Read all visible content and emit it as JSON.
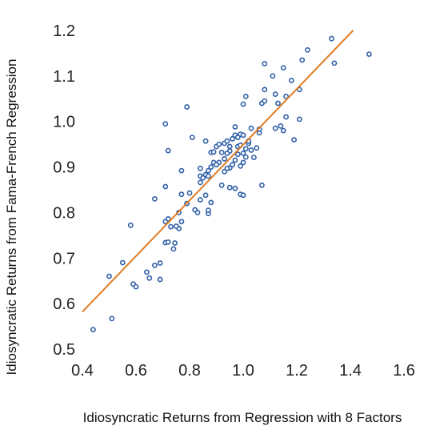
{
  "chart_data": {
    "type": "scatter",
    "title": "",
    "xlabel": "Idiosyncratic Returns from Regression with 8 Factors",
    "ylabel": "Idiosyncratic Returns from Fama-French Regression",
    "xlim": [
      0.4,
      1.6
    ],
    "ylim": [
      0.5,
      1.2
    ],
    "x_ticks": [
      "0.4",
      "0.6",
      "0.8",
      "1.0",
      "1.2",
      "1.4",
      "1.6"
    ],
    "y_ticks": [
      "0.5",
      "0.6",
      "0.7",
      "0.8",
      "0.9",
      "1.0",
      "1.1",
      "1.2"
    ],
    "grid": false,
    "legend": "none",
    "colors": {
      "points": "#2e5fa8",
      "trendline": "#e07b22"
    },
    "trendline": {
      "x": [
        0.4,
        1.41
      ],
      "y": [
        0.582,
        1.2
      ]
    },
    "series": [
      {
        "points": [
          [
            0.44,
            0.543
          ],
          [
            0.51,
            0.567
          ],
          [
            0.59,
            0.643
          ],
          [
            0.6,
            0.637
          ],
          [
            0.64,
            0.669
          ],
          [
            0.65,
            0.656
          ],
          [
            0.67,
            0.684
          ],
          [
            0.69,
            0.653
          ],
          [
            0.69,
            0.689
          ],
          [
            0.71,
            0.734
          ],
          [
            0.72,
            0.735
          ],
          [
            0.74,
            0.72
          ],
          [
            0.745,
            0.733
          ],
          [
            0.76,
            0.765
          ],
          [
            0.75,
            0.77
          ],
          [
            0.77,
            0.78
          ],
          [
            0.72,
            0.786
          ],
          [
            0.71,
            0.78
          ],
          [
            0.73,
            0.769
          ],
          [
            0.5,
            0.66
          ],
          [
            0.55,
            0.69
          ],
          [
            0.58,
            0.772
          ],
          [
            0.67,
            0.83
          ],
          [
            0.71,
            0.857
          ],
          [
            0.76,
            0.8
          ],
          [
            0.77,
            0.84
          ],
          [
            0.79,
            0.82
          ],
          [
            0.8,
            0.843
          ],
          [
            0.82,
            0.806
          ],
          [
            0.83,
            0.8
          ],
          [
            0.84,
            0.828
          ],
          [
            0.86,
            0.838
          ],
          [
            0.87,
            0.798
          ],
          [
            0.87,
            0.805
          ],
          [
            0.88,
            0.822
          ],
          [
            0.84,
            0.866
          ],
          [
            0.84,
            0.88
          ],
          [
            0.85,
            0.876
          ],
          [
            0.86,
            0.883
          ],
          [
            0.87,
            0.88
          ],
          [
            0.87,
            0.892
          ],
          [
            0.88,
            0.9
          ],
          [
            0.89,
            0.91
          ],
          [
            0.84,
            0.897
          ],
          [
            0.77,
            0.892
          ],
          [
            0.72,
            0.936
          ],
          [
            0.81,
            0.965
          ],
          [
            0.86,
            0.957
          ],
          [
            0.88,
            0.932
          ],
          [
            0.89,
            0.933
          ],
          [
            0.9,
            0.945
          ],
          [
            0.91,
            0.95
          ],
          [
            0.92,
            0.932
          ],
          [
            0.93,
            0.952
          ],
          [
            0.94,
            0.957
          ],
          [
            0.95,
            0.945
          ],
          [
            0.95,
            0.935
          ],
          [
            0.96,
            0.962
          ],
          [
            0.97,
            0.97
          ],
          [
            0.98,
            0.965
          ],
          [
            0.99,
            0.972
          ],
          [
            1.0,
            0.97
          ],
          [
            0.98,
            0.945
          ],
          [
            0.98,
            0.928
          ],
          [
            0.99,
            0.948
          ],
          [
            1.0,
            0.93
          ],
          [
            1.01,
            0.94
          ],
          [
            1.02,
            0.952
          ],
          [
            1.02,
            0.957
          ],
          [
            1.03,
            0.937
          ],
          [
            1.04,
            0.921
          ],
          [
            1.05,
            0.942
          ],
          [
            1.01,
            0.922
          ],
          [
            1.0,
            0.91
          ],
          [
            0.99,
            0.902
          ],
          [
            0.97,
            0.915
          ],
          [
            0.96,
            0.905
          ],
          [
            0.95,
            0.898
          ],
          [
            0.94,
            0.897
          ],
          [
            0.93,
            0.89
          ],
          [
            0.93,
            0.918
          ],
          [
            0.94,
            0.93
          ],
          [
            0.91,
            0.91
          ],
          [
            0.9,
            0.905
          ],
          [
            0.92,
            0.86
          ],
          [
            0.95,
            0.855
          ],
          [
            0.97,
            0.853
          ],
          [
            0.99,
            0.84
          ],
          [
            1.0,
            0.838
          ],
          [
            1.07,
            0.86
          ],
          [
            0.71,
            0.995
          ],
          [
            0.79,
            1.032
          ],
          [
            0.97,
            0.988
          ],
          [
            1.0,
            1.038
          ],
          [
            1.01,
            1.055
          ],
          [
            1.03,
            0.985
          ],
          [
            1.06,
            0.975
          ],
          [
            1.06,
            0.983
          ],
          [
            1.07,
            1.04
          ],
          [
            1.08,
            1.045
          ],
          [
            1.08,
            1.07
          ],
          [
            1.11,
            1.1
          ],
          [
            1.12,
            1.06
          ],
          [
            1.13,
            1.04
          ],
          [
            1.12,
            0.985
          ],
          [
            1.14,
            0.99
          ],
          [
            1.15,
            0.98
          ],
          [
            1.16,
            1.01
          ],
          [
            1.16,
            1.055
          ],
          [
            1.18,
            1.09
          ],
          [
            1.19,
            0.96
          ],
          [
            1.21,
            1.005
          ],
          [
            1.21,
            1.07
          ],
          [
            1.22,
            1.135
          ],
          [
            1.24,
            1.157
          ],
          [
            1.15,
            1.118
          ],
          [
            1.08,
            1.127
          ],
          [
            1.33,
            1.182
          ],
          [
            1.34,
            1.128
          ],
          [
            1.47,
            1.148
          ]
        ]
      }
    ]
  }
}
